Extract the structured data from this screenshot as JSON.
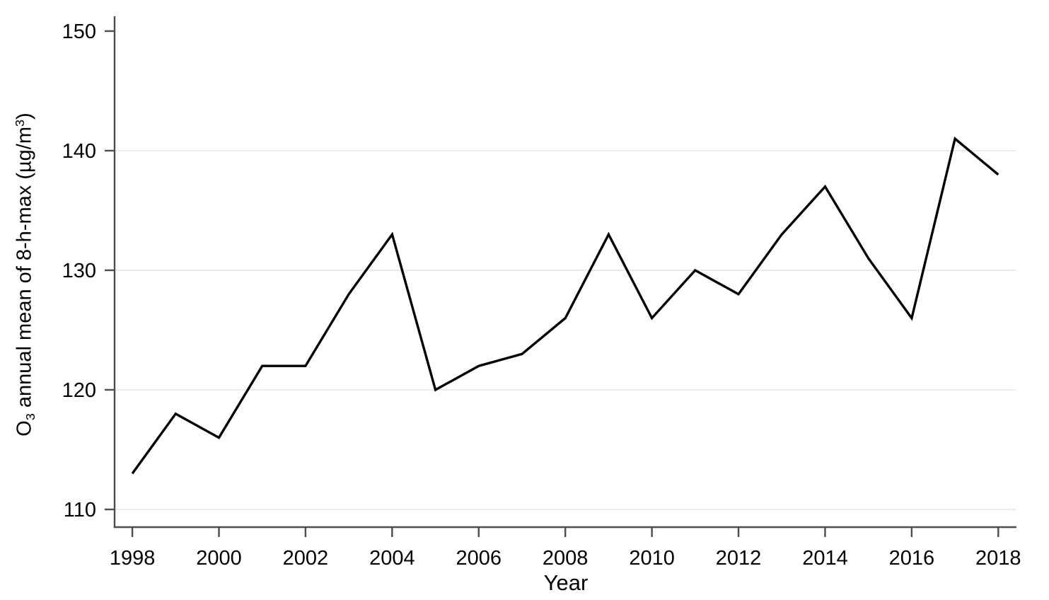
{
  "chart_data": {
    "type": "line",
    "title": "",
    "xlabel": "Year",
    "ylabel": "O3 annual mean of 8-h-max (µg/m³)",
    "ylabel_parts": [
      {
        "t": "O"
      },
      {
        "t": "3",
        "style": "sub"
      },
      {
        "t": " annual mean of 8-h-max (µg/m"
      },
      {
        "t": "3",
        "style": "sup"
      },
      {
        "t": ")"
      }
    ],
    "x": [
      1998,
      1999,
      2000,
      2001,
      2002,
      2003,
      2004,
      2005,
      2006,
      2007,
      2008,
      2009,
      2010,
      2011,
      2012,
      2013,
      2014,
      2015,
      2016,
      2017,
      2018
    ],
    "values": [
      113,
      118,
      116,
      122,
      122,
      128,
      133,
      120,
      122,
      123,
      126,
      133,
      126,
      130,
      128,
      133,
      137,
      131,
      126,
      141,
      138
    ],
    "x_ticks": [
      1998,
      2000,
      2002,
      2004,
      2006,
      2008,
      2010,
      2012,
      2014,
      2016,
      2018
    ],
    "y_ticks": [
      110,
      120,
      130,
      140,
      150
    ],
    "gridlines_at": [
      110,
      120,
      130,
      140
    ],
    "xlim": [
      1997.59,
      2018.42
    ],
    "ylim": [
      108.52,
      151.24
    ],
    "grid": true,
    "legend": false,
    "colors": {
      "line": "#000000",
      "axis": "#4d4d4d",
      "grid": "#e7e7e7",
      "text": "#000000",
      "background": "#ffffff"
    }
  }
}
